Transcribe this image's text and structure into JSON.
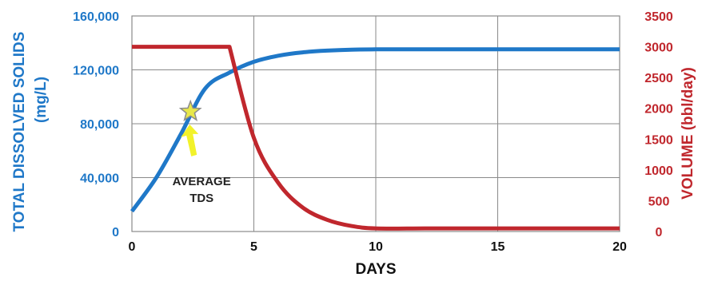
{
  "chart_data": {
    "type": "line",
    "x_axis": {
      "label": "DAYS",
      "range": [
        0,
        20
      ],
      "ticks": [
        "0",
        "5",
        "10",
        "15",
        "20"
      ]
    },
    "y_left": {
      "label_line1": "TOTAL DISSOLVED SOLIDS",
      "label_line2": "(mg/L)",
      "range": [
        0,
        160000
      ],
      "ticks": [
        "0",
        "40,000",
        "80,000",
        "120,000",
        "160,000"
      ],
      "color": "#1f78c8"
    },
    "y_right": {
      "label": "VOLUME (bbl/day)",
      "range": [
        0,
        3500
      ],
      "ticks": [
        "0",
        "500",
        "1000",
        "1500",
        "2000",
        "2500",
        "3000",
        "3500"
      ],
      "color": "#c0272d"
    },
    "grid": true,
    "series": [
      {
        "axis": "left",
        "color": "#1f78c8",
        "x": [
          0,
          1,
          2,
          3,
          4,
          5,
          6,
          7,
          8,
          9,
          10,
          12,
          14,
          16,
          18,
          20
        ],
        "y": [
          15000,
          40000,
          72000,
          106000,
          118000,
          126000,
          130500,
          133000,
          134300,
          135000,
          135200,
          135300,
          135300,
          135300,
          135300,
          135300
        ]
      },
      {
        "axis": "right",
        "color": "#c0272d",
        "x": [
          0,
          4,
          5,
          6,
          7,
          8,
          9,
          10,
          12,
          14,
          16,
          18,
          20
        ],
        "y": [
          3000,
          3000,
          1520,
          790,
          390,
          190,
          90,
          50,
          50,
          50,
          50,
          50,
          50
        ]
      }
    ],
    "annotation": {
      "text_line1": "AVERAGE",
      "text_line2": "TDS",
      "point_x": 2.4,
      "point_y": 89000,
      "star_color": "#e8e84a",
      "arrow_color": "#f2f22a"
    }
  }
}
